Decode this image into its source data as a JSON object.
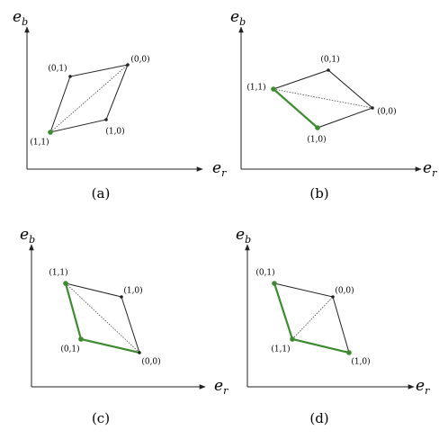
{
  "panels": [
    {
      "caption": "(a)",
      "axis_y": {
        "base": "e",
        "sub": "b"
      },
      "axis_x": {
        "base": "e",
        "sub": "r"
      },
      "points": [
        {
          "label": "(0,1)"
        },
        {
          "label": "(0,0)"
        },
        {
          "label": "(1,0)"
        },
        {
          "label": "(1,1)"
        }
      ]
    },
    {
      "caption": "(b)",
      "axis_y": {
        "base": "e",
        "sub": "b"
      },
      "axis_x": {
        "base": "e",
        "sub": "r"
      },
      "points": [
        {
          "label": "(0,1)"
        },
        {
          "label": "(1,1)"
        },
        {
          "label": "(0,0)"
        },
        {
          "label": "(1,0)"
        }
      ]
    },
    {
      "caption": "(c)",
      "axis_y": {
        "base": "e",
        "sub": "b"
      },
      "axis_x": {
        "base": "e",
        "sub": "r"
      },
      "points": [
        {
          "label": "(1,1)"
        },
        {
          "label": "(1,0)"
        },
        {
          "label": "(0,1)"
        },
        {
          "label": "(0,0)"
        }
      ]
    },
    {
      "caption": "(d)",
      "axis_y": {
        "base": "e",
        "sub": "b"
      },
      "axis_x": {
        "base": "e",
        "sub": "r"
      },
      "points": [
        {
          "label": "(0,1)"
        },
        {
          "label": "(0,0)"
        },
        {
          "label": "(1,1)"
        },
        {
          "label": "(1,0)"
        }
      ]
    }
  ]
}
